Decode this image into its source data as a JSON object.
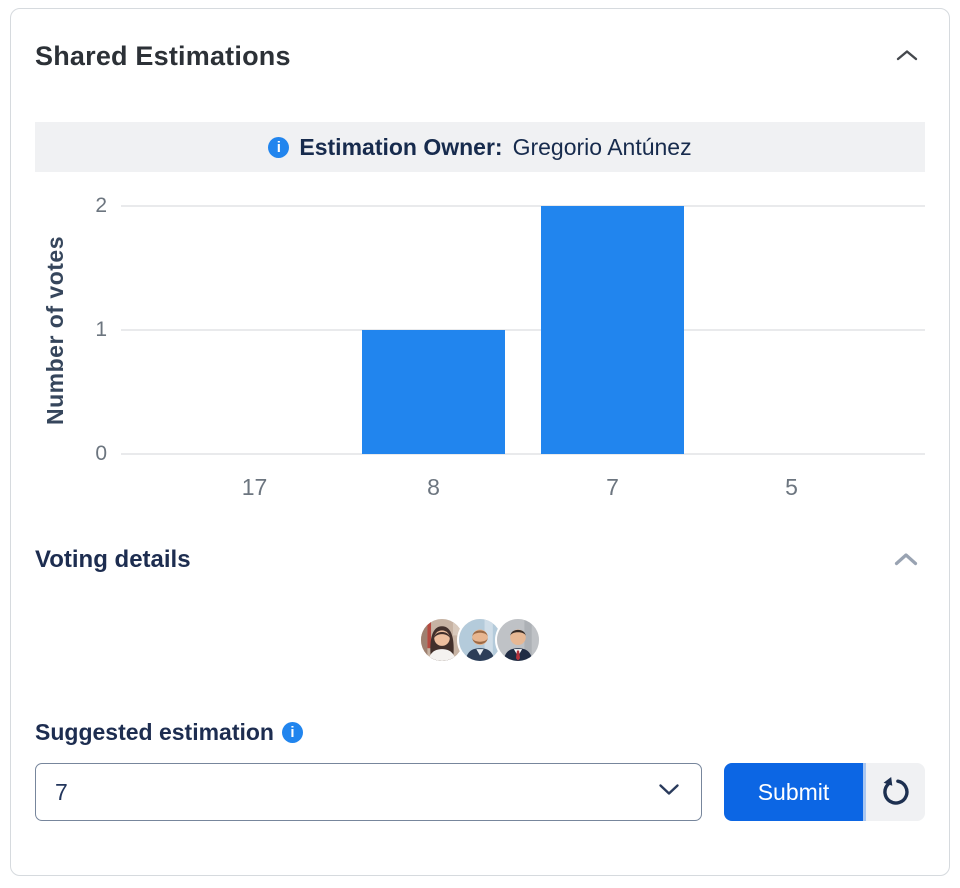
{
  "panel": {
    "title": "Shared Estimations"
  },
  "owner_banner": {
    "label": "Estimation Owner:",
    "name": "Gregorio Antúnez",
    "info_icon": "i"
  },
  "chart_data": {
    "type": "bar",
    "categories": [
      "17",
      "8",
      "7",
      "5"
    ],
    "values": [
      0,
      1,
      2,
      0
    ],
    "title": "",
    "xlabel": "",
    "ylabel": "Number of votes",
    "yticks": [
      0,
      1,
      2
    ],
    "ylim": [
      0,
      2
    ],
    "bar_color": "#2185ee",
    "grid": true,
    "legend": false
  },
  "voting": {
    "title": "Voting details",
    "voter_count": 3
  },
  "suggestion": {
    "label": "Suggested estimation",
    "info_icon": "i",
    "selected_value": "7"
  },
  "actions": {
    "submit_label": "Submit"
  },
  "colors": {
    "bar_blue": "#2185ee",
    "submit_blue": "#0c66e4",
    "navy_text": "#1d2d50",
    "banner_bg": "#f0f1f3",
    "gridline": "#e9eaec"
  }
}
